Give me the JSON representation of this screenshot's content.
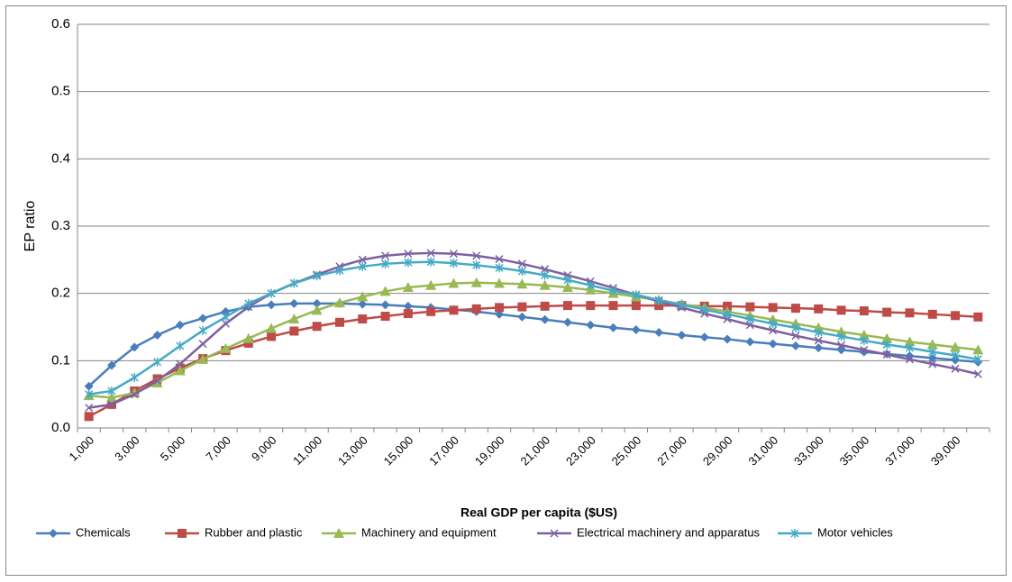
{
  "chart_data": {
    "type": "line",
    "x_label": "Real GDP per capita ($US)",
    "y_label": "EP ratio",
    "categories": [
      "1,000",
      null,
      "3,000",
      null,
      "5,000",
      null,
      "7,000",
      null,
      "9,000",
      null,
      "11,000",
      null,
      "13,000",
      null,
      "15,000",
      null,
      "17,000",
      null,
      "19,000",
      null,
      "21,000",
      null,
      "23,000",
      null,
      "25,000",
      null,
      "27,000",
      null,
      "29,000",
      null,
      "31,000",
      null,
      "33,000",
      null,
      "35,000",
      null,
      "37,000",
      null,
      "39,000",
      null
    ],
    "ylim": [
      0,
      0.6
    ],
    "yticks": [
      {
        "value": 0,
        "label": "0.0"
      },
      0.1,
      0.2,
      0.3,
      0.4,
      0.5,
      0.6
    ],
    "grid": true,
    "legend": "bottom",
    "series": [
      {
        "name": "Chemicals",
        "color": "#4a7ebb",
        "marker": "diamond",
        "values": [
          0.062,
          0.093,
          0.12,
          0.138,
          0.153,
          0.163,
          0.173,
          0.18,
          0.183,
          0.185,
          0.185,
          0.185,
          0.184,
          0.183,
          0.181,
          0.179,
          0.176,
          0.173,
          0.169,
          0.165,
          0.161,
          0.157,
          0.153,
          0.149,
          0.146,
          0.142,
          0.138,
          0.135,
          0.132,
          0.128,
          0.125,
          0.122,
          0.119,
          0.116,
          0.113,
          0.11,
          0.107,
          0.104,
          0.101,
          0.098
        ]
      },
      {
        "name": "Rubber and plastic",
        "color": "#be4b48",
        "marker": "square",
        "values": [
          0.017,
          0.035,
          0.055,
          0.073,
          0.089,
          0.103,
          0.115,
          0.126,
          0.136,
          0.144,
          0.151,
          0.157,
          0.162,
          0.166,
          0.17,
          0.173,
          0.175,
          0.177,
          0.179,
          0.18,
          0.181,
          0.182,
          0.182,
          0.182,
          0.182,
          0.182,
          0.182,
          0.181,
          0.181,
          0.18,
          0.179,
          0.178,
          0.177,
          0.175,
          0.174,
          0.172,
          0.171,
          0.169,
          0.167,
          0.165
        ]
      },
      {
        "name": "Machinery and equipment",
        "color": "#98b954",
        "marker": "triangle",
        "values": [
          0.048,
          0.045,
          0.052,
          0.067,
          0.085,
          0.102,
          0.118,
          0.133,
          0.148,
          0.162,
          0.175,
          0.186,
          0.195,
          0.203,
          0.209,
          0.212,
          0.215,
          0.216,
          0.215,
          0.214,
          0.212,
          0.209,
          0.205,
          0.2,
          0.195,
          0.19,
          0.184,
          0.179,
          0.173,
          0.167,
          0.161,
          0.155,
          0.149,
          0.143,
          0.138,
          0.133,
          0.128,
          0.124,
          0.12,
          0.116
        ]
      },
      {
        "name": "Electrical machinery and apparatus",
        "color": "#7d60a0",
        "marker": "x",
        "values": [
          0.03,
          0.035,
          0.05,
          0.07,
          0.095,
          0.125,
          0.155,
          0.18,
          0.2,
          0.215,
          0.228,
          0.24,
          0.25,
          0.256,
          0.259,
          0.26,
          0.259,
          0.256,
          0.251,
          0.244,
          0.236,
          0.227,
          0.218,
          0.208,
          0.198,
          0.188,
          0.179,
          0.17,
          0.162,
          0.153,
          0.145,
          0.137,
          0.13,
          0.123,
          0.116,
          0.109,
          0.102,
          0.095,
          0.088,
          0.08
        ]
      },
      {
        "name": "Motor vehicles",
        "color": "#46aac5",
        "marker": "star",
        "values": [
          0.05,
          0.055,
          0.075,
          0.098,
          0.122,
          0.145,
          0.165,
          0.185,
          0.2,
          0.215,
          0.226,
          0.234,
          0.24,
          0.244,
          0.246,
          0.247,
          0.245,
          0.242,
          0.238,
          0.233,
          0.227,
          0.22,
          0.212,
          0.204,
          0.198,
          0.19,
          0.183,
          0.176,
          0.169,
          0.162,
          0.155,
          0.149,
          0.142,
          0.136,
          0.13,
          0.124,
          0.119,
          0.113,
          0.108,
          0.102
        ]
      }
    ]
  }
}
